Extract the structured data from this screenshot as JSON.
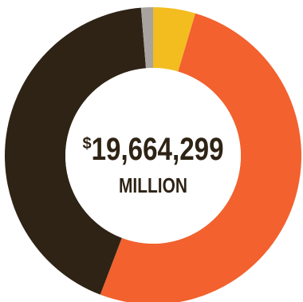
{
  "chart_data": {
    "type": "pie",
    "donut": true,
    "slices": [
      {
        "value": 4.6,
        "color": "#f3bd20"
      },
      {
        "value": 51.2,
        "color": "#f2612e"
      },
      {
        "value": 42.9,
        "color": "#2e2315"
      },
      {
        "value": 1.3,
        "color": "#a8a39f"
      }
    ],
    "center": {
      "currency": "$",
      "amount": "19,664,299",
      "unit": "MILLION"
    },
    "title": "",
    "legend": "none"
  }
}
